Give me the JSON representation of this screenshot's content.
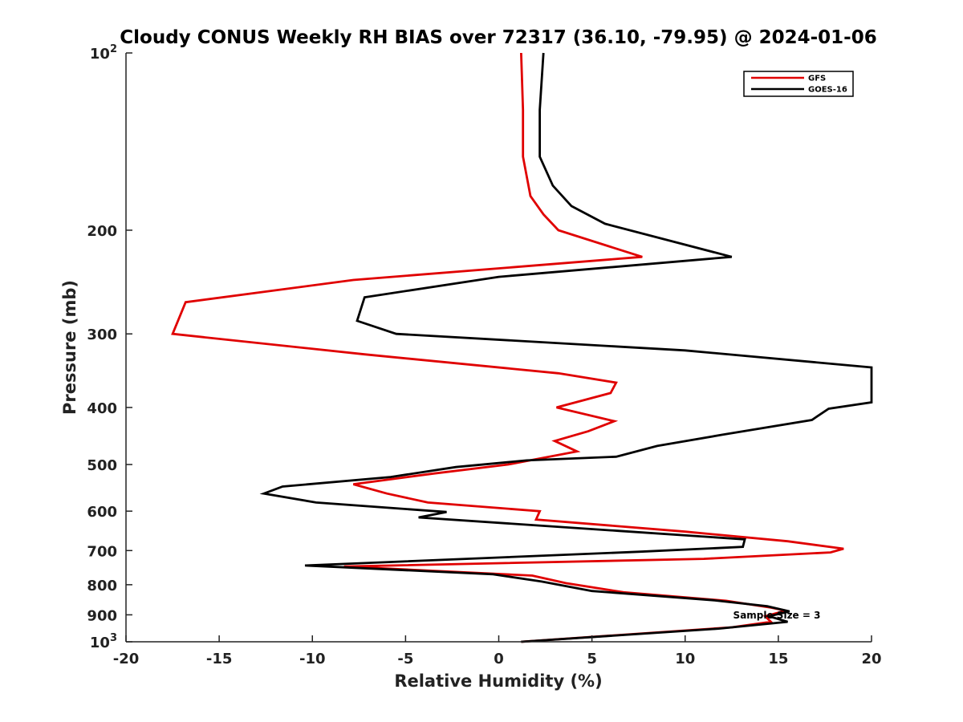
{
  "chart_data": {
    "type": "line",
    "title": "Cloudy CONUS Weekly RH BIAS over 72317 (36.10, -79.95) @ 2024-01-06",
    "xlabel": "Relative Humidity (%)",
    "ylabel": "Pressure (mb)",
    "xlim": [
      -20,
      20
    ],
    "ylim": [
      100,
      1000
    ],
    "y_scale": "log",
    "y_reversed": true,
    "grid": false,
    "x_ticks": [
      -20,
      -15,
      -10,
      -5,
      0,
      5,
      10,
      15,
      20
    ],
    "x_tick_labels": [
      "-20",
      "-15",
      "-10",
      "-5",
      "0",
      "5",
      "10",
      "15",
      "20"
    ],
    "y_ticks": [
      100,
      200,
      300,
      400,
      500,
      600,
      700,
      800,
      900,
      1000
    ],
    "y_tick_labels": [
      {
        "base": "10",
        "exp": "2"
      },
      {
        "base": "200",
        "exp": ""
      },
      {
        "base": "300",
        "exp": ""
      },
      {
        "base": "400",
        "exp": ""
      },
      {
        "base": "500",
        "exp": ""
      },
      {
        "base": "600",
        "exp": ""
      },
      {
        "base": "700",
        "exp": ""
      },
      {
        "base": "800",
        "exp": ""
      },
      {
        "base": "900",
        "exp": ""
      },
      {
        "base": "10",
        "exp": "3"
      }
    ],
    "legend_position": "top-right",
    "annotation": "Sample Size = 3",
    "series": [
      {
        "name": "GFS",
        "color": "#e00000",
        "points": [
          [
            1.2,
            100
          ],
          [
            1.3,
            125
          ],
          [
            1.3,
            150
          ],
          [
            1.7,
            175
          ],
          [
            2.4,
            188
          ],
          [
            3.2,
            200
          ],
          [
            7.7,
            222
          ],
          [
            -7.8,
            243
          ],
          [
            -16.8,
            265
          ],
          [
            -17.5,
            300
          ],
          [
            -7.2,
            325
          ],
          [
            3.2,
            350
          ],
          [
            6.3,
            363
          ],
          [
            6.0,
            378
          ],
          [
            3.1,
            400
          ],
          [
            6.2,
            422
          ],
          [
            4.8,
            439
          ],
          [
            3.0,
            456
          ],
          [
            4.2,
            475
          ],
          [
            0.5,
            500
          ],
          [
            -3.5,
            518
          ],
          [
            -7.8,
            540
          ],
          [
            -6.0,
            560
          ],
          [
            -3.8,
            580
          ],
          [
            2.2,
            600
          ],
          [
            2.0,
            620
          ],
          [
            10.0,
            650
          ],
          [
            15.5,
            675
          ],
          [
            18.5,
            695
          ],
          [
            17.8,
            705
          ],
          [
            11.0,
            723
          ],
          [
            -8.3,
            745
          ],
          [
            1.8,
            772
          ],
          [
            3.6,
            795
          ],
          [
            6.7,
            824
          ],
          [
            12.2,
            852
          ],
          [
            14.6,
            875
          ],
          [
            15.4,
            885
          ],
          [
            14.3,
            905
          ],
          [
            14.6,
            925
          ],
          [
            12.5,
            945
          ],
          [
            1.2,
            1000
          ]
        ]
      },
      {
        "name": "GOES-16",
        "color": "#000000",
        "points": [
          [
            2.4,
            100
          ],
          [
            2.2,
            125
          ],
          [
            2.2,
            150
          ],
          [
            2.9,
            168
          ],
          [
            3.9,
            182
          ],
          [
            5.7,
            195
          ],
          [
            12.5,
            222
          ],
          [
            0,
            240
          ],
          [
            -7.2,
            260
          ],
          [
            -7.6,
            285
          ],
          [
            -5.5,
            300
          ],
          [
            10.0,
            320
          ],
          [
            20.0,
            342
          ],
          [
            20.0,
            392
          ],
          [
            17.7,
            402
          ],
          [
            16.8,
            420
          ],
          [
            12.0,
            445
          ],
          [
            8.5,
            465
          ],
          [
            6.3,
            485
          ],
          [
            1.5,
            492
          ],
          [
            -2.3,
            505
          ],
          [
            -5.8,
            525
          ],
          [
            -11.6,
            545
          ],
          [
            -12.6,
            560
          ],
          [
            -9.8,
            580
          ],
          [
            -2.8,
            602
          ],
          [
            -4.3,
            615
          ],
          [
            6.4,
            648
          ],
          [
            13.2,
            670
          ],
          [
            13.1,
            690
          ],
          [
            7.6,
            703
          ],
          [
            -10.4,
            742
          ],
          [
            -0.3,
            768
          ],
          [
            2.3,
            790
          ],
          [
            5.0,
            820
          ],
          [
            11.5,
            850
          ],
          [
            14.4,
            870
          ],
          [
            15.6,
            888
          ],
          [
            14.5,
            905
          ],
          [
            15.5,
            925
          ],
          [
            11.8,
            950
          ],
          [
            1.2,
            1000
          ]
        ]
      }
    ]
  }
}
